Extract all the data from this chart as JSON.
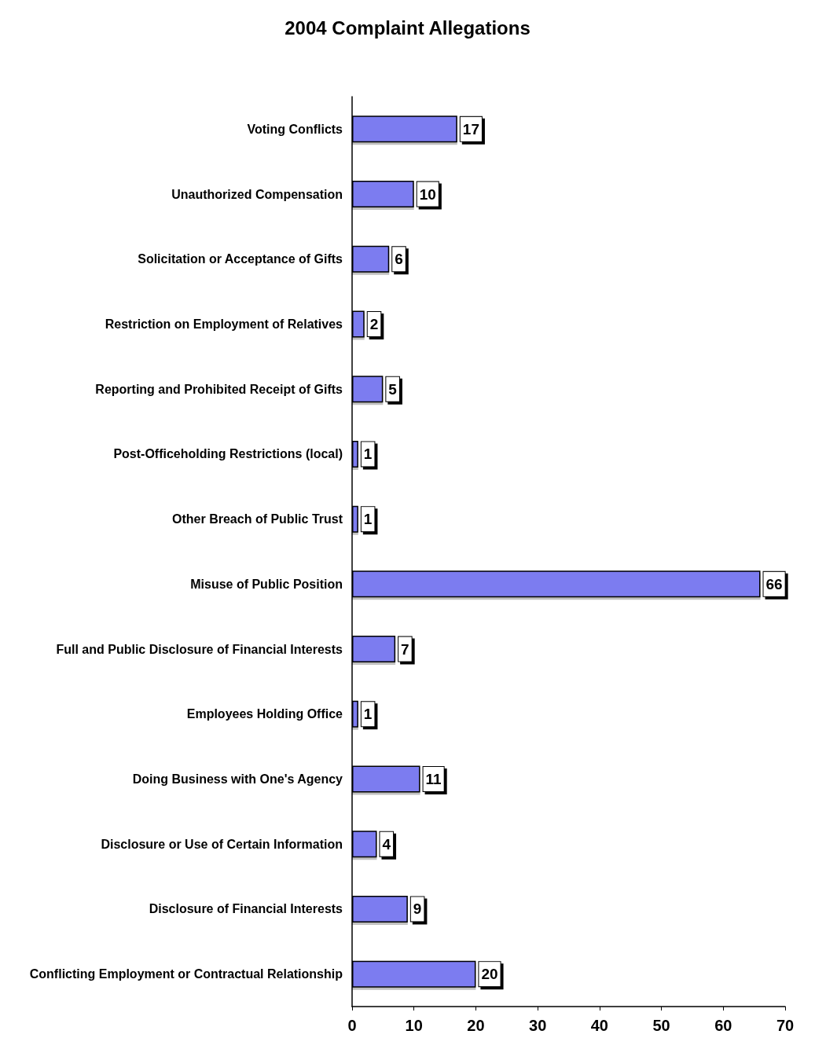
{
  "chart_data": {
    "type": "bar",
    "title": "2004 Complaint Allegations",
    "orientation": "horizontal",
    "categories": [
      "Voting Conflicts",
      "Unauthorized Compensation",
      "Solicitation or Acceptance of Gifts",
      "Restriction on Employment of Relatives",
      "Reporting and Prohibited Receipt of Gifts",
      "Post-Officeholding Restrictions (local)",
      "Other Breach of Public Trust",
      "Misuse of Public Position",
      "Full and Public Disclosure of Financial Interests",
      "Employees Holding Office",
      "Doing Business with One's Agency",
      "Disclosure or Use of Certain Information",
      "Disclosure of Financial Interests",
      "Conflicting Employment or Contractual Relationship"
    ],
    "values": [
      17,
      10,
      6,
      2,
      5,
      1,
      1,
      66,
      7,
      1,
      11,
      4,
      9,
      20
    ],
    "color": "#7b7bf0",
    "xlim": [
      0,
      70
    ],
    "xticks": [
      0,
      10,
      20,
      30,
      40,
      50,
      60,
      70
    ],
    "data_labels": true
  }
}
